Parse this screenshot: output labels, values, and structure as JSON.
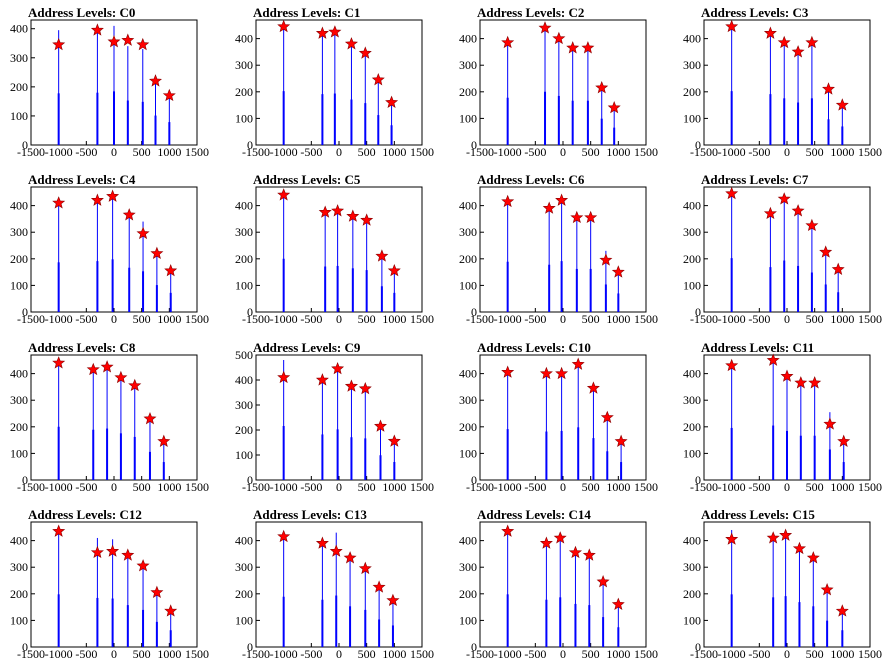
{
  "figure": {
    "panel_title_prefix": "Address Levels: ",
    "colors": {
      "spike": "#0000ff",
      "axis": "#000000",
      "marker_fill": "#ff0000",
      "marker_stroke": "#8b0000",
      "background": "#ffffff"
    }
  },
  "chart_data": [
    {
      "type": "bar",
      "title": "Address Levels: C0",
      "xlim": [
        -1500,
        1500
      ],
      "ylim": [
        0,
        430
      ],
      "xticks": [
        -1500,
        -1000,
        -500,
        0,
        500,
        1000,
        1500
      ],
      "yticks": [
        0,
        100,
        200,
        300,
        400
      ],
      "peaks_x": [
        -1000,
        -300,
        0,
        250,
        520,
        750,
        1000
      ],
      "peaks_y": [
        345,
        395,
        355,
        360,
        345,
        220,
        170
      ],
      "bar_heights": [
        395,
        400,
        410,
        340,
        330,
        225,
        175
      ]
    },
    {
      "type": "bar",
      "title": "Address Levels: C1",
      "xlim": [
        -1500,
        1500
      ],
      "ylim": [
        0,
        470
      ],
      "xticks": [
        -1500,
        -1000,
        -500,
        0,
        500,
        1000,
        1500
      ],
      "yticks": [
        0,
        100,
        200,
        300,
        400
      ],
      "peaks_x": [
        -1000,
        -300,
        -75,
        225,
        475,
        710,
        950
      ],
      "peaks_y": [
        445,
        420,
        425,
        380,
        345,
        245,
        160
      ],
      "bar_heights": [
        450,
        425,
        430,
        380,
        350,
        250,
        165
      ]
    },
    {
      "type": "bar",
      "title": "Address Levels: C2",
      "xlim": [
        -1500,
        1500
      ],
      "ylim": [
        0,
        470
      ],
      "xticks": [
        -1500,
        -1000,
        -500,
        0,
        500,
        1000,
        1500
      ],
      "yticks": [
        0,
        100,
        200,
        300,
        400
      ],
      "peaks_x": [
        -1000,
        -325,
        -75,
        175,
        450,
        700,
        925
      ],
      "peaks_y": [
        385,
        440,
        400,
        365,
        365,
        215,
        140
      ],
      "bar_heights": [
        395,
        445,
        410,
        370,
        370,
        220,
        145
      ]
    },
    {
      "type": "bar",
      "title": "Address Levels: C3",
      "xlim": [
        -1500,
        1500
      ],
      "ylim": [
        0,
        470
      ],
      "xticks": [
        -1500,
        -1000,
        -500,
        0,
        500,
        1000,
        1500
      ],
      "yticks": [
        0,
        100,
        200,
        300,
        400
      ],
      "peaks_x": [
        -1000,
        -300,
        -50,
        200,
        450,
        750,
        1000
      ],
      "peaks_y": [
        445,
        420,
        385,
        350,
        385,
        210,
        150
      ],
      "bar_heights": [
        450,
        425,
        390,
        355,
        390,
        215,
        155
      ]
    },
    {
      "type": "bar",
      "title": "Address Levels: C4",
      "xlim": [
        -1500,
        1500
      ],
      "ylim": [
        0,
        470
      ],
      "xticks": [
        -1500,
        -1000,
        -500,
        0,
        500,
        1000,
        1500
      ],
      "yticks": [
        0,
        100,
        200,
        300,
        400
      ],
      "peaks_x": [
        -1000,
        -300,
        -25,
        275,
        525,
        775,
        1025
      ],
      "peaks_y": [
        410,
        420,
        435,
        365,
        295,
        220,
        155
      ],
      "bar_heights": [
        415,
        425,
        440,
        370,
        340,
        225,
        160
      ]
    },
    {
      "type": "bar",
      "title": "Address Levels: C5",
      "xlim": [
        -1500,
        1500
      ],
      "ylim": [
        0,
        470
      ],
      "xticks": [
        -1500,
        -1000,
        -500,
        0,
        500,
        1000,
        1500
      ],
      "yticks": [
        0,
        100,
        200,
        300,
        400
      ],
      "peaks_x": [
        -1000,
        -250,
        -25,
        250,
        500,
        775,
        1000
      ],
      "peaks_y": [
        440,
        375,
        380,
        360,
        345,
        210,
        155
      ],
      "bar_heights": [
        445,
        380,
        385,
        365,
        350,
        215,
        160
      ]
    },
    {
      "type": "bar",
      "title": "Address Levels: C6",
      "xlim": [
        -1500,
        1500
      ],
      "ylim": [
        0,
        470
      ],
      "xticks": [
        -1500,
        -1000,
        -500,
        0,
        500,
        1000,
        1500
      ],
      "yticks": [
        0,
        100,
        200,
        300,
        400
      ],
      "peaks_x": [
        -1000,
        -250,
        -25,
        250,
        500,
        775,
        1000
      ],
      "peaks_y": [
        415,
        390,
        420,
        355,
        355,
        195,
        150
      ],
      "bar_heights": [
        420,
        395,
        425,
        360,
        360,
        230,
        155
      ]
    },
    {
      "type": "bar",
      "title": "Address Levels: C7",
      "xlim": [
        -1500,
        1500
      ],
      "ylim": [
        0,
        470
      ],
      "xticks": [
        -1500,
        -1000,
        -500,
        0,
        500,
        1000,
        1500
      ],
      "yticks": [
        0,
        100,
        200,
        300,
        400
      ],
      "peaks_x": [
        -1000,
        -300,
        -50,
        200,
        450,
        700,
        925
      ],
      "peaks_y": [
        445,
        370,
        425,
        380,
        325,
        225,
        160
      ],
      "bar_heights": [
        450,
        375,
        430,
        385,
        330,
        230,
        165
      ]
    },
    {
      "type": "bar",
      "title": "Address Levels: C8",
      "xlim": [
        -1500,
        1500
      ],
      "ylim": [
        0,
        470
      ],
      "xticks": [
        -1500,
        -1000,
        -500,
        0,
        500,
        1000,
        1500
      ],
      "yticks": [
        0,
        100,
        200,
        300,
        400
      ],
      "peaks_x": [
        -1000,
        -375,
        -125,
        125,
        375,
        650,
        900
      ],
      "peaks_y": [
        440,
        415,
        425,
        385,
        355,
        230,
        145
      ],
      "bar_heights": [
        445,
        420,
        430,
        390,
        360,
        235,
        150
      ]
    },
    {
      "type": "bar",
      "title": "Address Levels: C9",
      "xlim": [
        -1500,
        1500
      ],
      "ylim": [
        0,
        500
      ],
      "xticks": [
        -1500,
        -1000,
        -500,
        0,
        500,
        1000,
        1500
      ],
      "yticks": [
        0,
        100,
        200,
        300,
        400,
        500
      ],
      "peaks_x": [
        -1000,
        -300,
        -25,
        225,
        475,
        750,
        1000
      ],
      "peaks_y": [
        410,
        400,
        445,
        375,
        365,
        215,
        155
      ],
      "bar_heights": [
        480,
        405,
        450,
        380,
        370,
        220,
        160
      ]
    },
    {
      "type": "bar",
      "title": "Address Levels: C10",
      "xlim": [
        -1500,
        1500
      ],
      "ylim": [
        0,
        470
      ],
      "xticks": [
        -1500,
        -1000,
        -500,
        0,
        500,
        1000,
        1500
      ],
      "yticks": [
        0,
        100,
        200,
        300,
        400
      ],
      "peaks_x": [
        -1000,
        -300,
        -25,
        275,
        550,
        800,
        1050
      ],
      "peaks_y": [
        405,
        400,
        400,
        435,
        345,
        235,
        145
      ],
      "bar_heights": [
        425,
        405,
        410,
        440,
        350,
        240,
        150
      ]
    },
    {
      "type": "bar",
      "title": "Address Levels: C11",
      "xlim": [
        -1500,
        1500
      ],
      "ylim": [
        0,
        470
      ],
      "xticks": [
        -1500,
        -1000,
        -500,
        0,
        500,
        1000,
        1500
      ],
      "yticks": [
        0,
        100,
        200,
        300,
        400
      ],
      "peaks_x": [
        -1000,
        -250,
        0,
        250,
        500,
        775,
        1025
      ],
      "peaks_y": [
        430,
        450,
        390,
        365,
        365,
        210,
        145
      ],
      "bar_heights": [
        435,
        455,
        410,
        370,
        370,
        255,
        150
      ]
    },
    {
      "type": "bar",
      "title": "Address Levels: C12",
      "xlim": [
        -1500,
        1500
      ],
      "ylim": [
        0,
        470
      ],
      "xticks": [
        -1500,
        -1000,
        -500,
        0,
        500,
        1000,
        1500
      ],
      "yticks": [
        0,
        100,
        200,
        300,
        400
      ],
      "peaks_x": [
        -1000,
        -300,
        -25,
        250,
        525,
        775,
        1025
      ],
      "peaks_y": [
        435,
        355,
        360,
        345,
        305,
        205,
        135
      ],
      "bar_heights": [
        440,
        410,
        405,
        350,
        310,
        210,
        140
      ]
    },
    {
      "type": "bar",
      "title": "Address Levels: C13",
      "xlim": [
        -1500,
        1500
      ],
      "ylim": [
        0,
        470
      ],
      "xticks": [
        -1500,
        -1000,
        -500,
        0,
        500,
        1000,
        1500
      ],
      "yticks": [
        0,
        100,
        200,
        300,
        400
      ],
      "peaks_x": [
        -1000,
        -300,
        -50,
        200,
        475,
        725,
        975
      ],
      "peaks_y": [
        415,
        390,
        360,
        335,
        295,
        225,
        175
      ],
      "bar_heights": [
        420,
        395,
        430,
        340,
        310,
        230,
        180
      ]
    },
    {
      "type": "bar",
      "title": "Address Levels: C14",
      "xlim": [
        -1500,
        1500
      ],
      "ylim": [
        0,
        470
      ],
      "xticks": [
        -1500,
        -1000,
        -500,
        0,
        500,
        1000,
        1500
      ],
      "yticks": [
        0,
        100,
        200,
        300,
        400
      ],
      "peaks_x": [
        -1000,
        -300,
        -50,
        225,
        475,
        725,
        1000
      ],
      "peaks_y": [
        435,
        390,
        410,
        355,
        345,
        245,
        160
      ],
      "bar_heights": [
        440,
        395,
        415,
        360,
        350,
        250,
        165
      ]
    },
    {
      "type": "bar",
      "title": "Address Levels: C15",
      "xlim": [
        -1500,
        1500
      ],
      "ylim": [
        0,
        470
      ],
      "xticks": [
        -1500,
        -1000,
        -500,
        0,
        500,
        1000,
        1500
      ],
      "yticks": [
        0,
        100,
        200,
        300,
        400
      ],
      "peaks_x": [
        -1000,
        -250,
        -25,
        225,
        475,
        725,
        1000
      ],
      "peaks_y": [
        405,
        410,
        420,
        370,
        335,
        215,
        135
      ],
      "bar_heights": [
        440,
        415,
        425,
        375,
        340,
        220,
        140
      ]
    }
  ]
}
